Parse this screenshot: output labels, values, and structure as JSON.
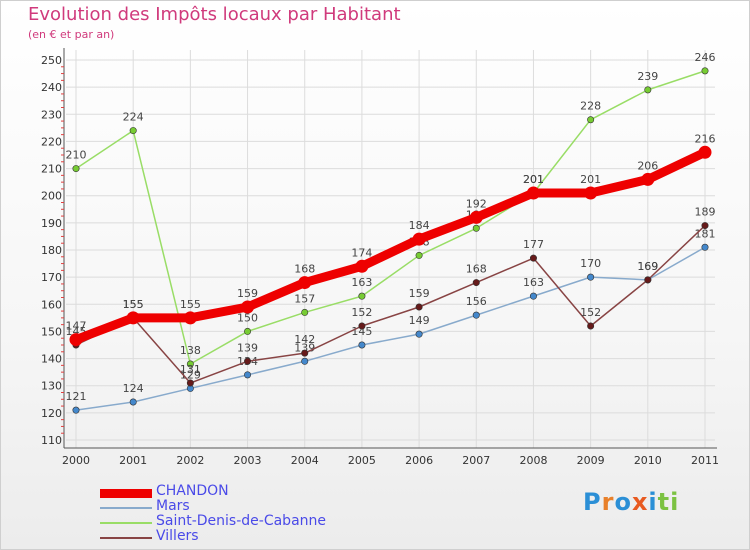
{
  "chart_data": {
    "type": "line",
    "title": "Evolution des Impôts locaux par Habitant",
    "subtitle": "(en € et par an)",
    "xlabel": "",
    "ylabel": "",
    "ylim": [
      110,
      250
    ],
    "yticks": [
      "110",
      "120",
      "130",
      "140",
      "150",
      "160",
      "170",
      "180",
      "190",
      "200",
      "210",
      "220",
      "230",
      "240",
      "250"
    ],
    "categories": [
      "2000",
      "2001",
      "2002",
      "2003",
      "2004",
      "2005",
      "2006",
      "2007",
      "2008",
      "2009",
      "2010",
      "2011"
    ],
    "grid": true,
    "legend_position": "bottom-left",
    "series": [
      {
        "name": "Saint-Denis-de-Cabanne",
        "color": "#99dd66",
        "marker": "#77cc33",
        "values": [
          210,
          224,
          138,
          150,
          157,
          163,
          178,
          188,
          201,
          228,
          239,
          246
        ]
      },
      {
        "name": "Mars",
        "color": "#88aacc",
        "marker": "#4488cc",
        "values": [
          121,
          124,
          129,
          134,
          139,
          145,
          149,
          156,
          163,
          170,
          169,
          181
        ]
      },
      {
        "name": "Villers",
        "color": "#884444",
        "marker": "#661a1a",
        "values": [
          145,
          155,
          131,
          139,
          142,
          152,
          159,
          168,
          177,
          152,
          169,
          189
        ]
      },
      {
        "name": "CHANDON",
        "color": "#ee0000",
        "marker": "#ee0000",
        "values": [
          147,
          155,
          155,
          159,
          168,
          174,
          184,
          192,
          201,
          201,
          206,
          216
        ]
      }
    ]
  },
  "logo": {
    "text": "Proxiti",
    "letters": [
      {
        "ch": "P",
        "color": "#2b8fd6"
      },
      {
        "ch": "r",
        "color": "#e8802a"
      },
      {
        "ch": "o",
        "color": "#2b8fd6"
      },
      {
        "ch": "x",
        "color": "#e85a20"
      },
      {
        "ch": "i",
        "color": "#2b8fd6"
      },
      {
        "ch": "t",
        "color": "#7cc242"
      },
      {
        "ch": "i",
        "color": "#7cc242"
      }
    ]
  }
}
